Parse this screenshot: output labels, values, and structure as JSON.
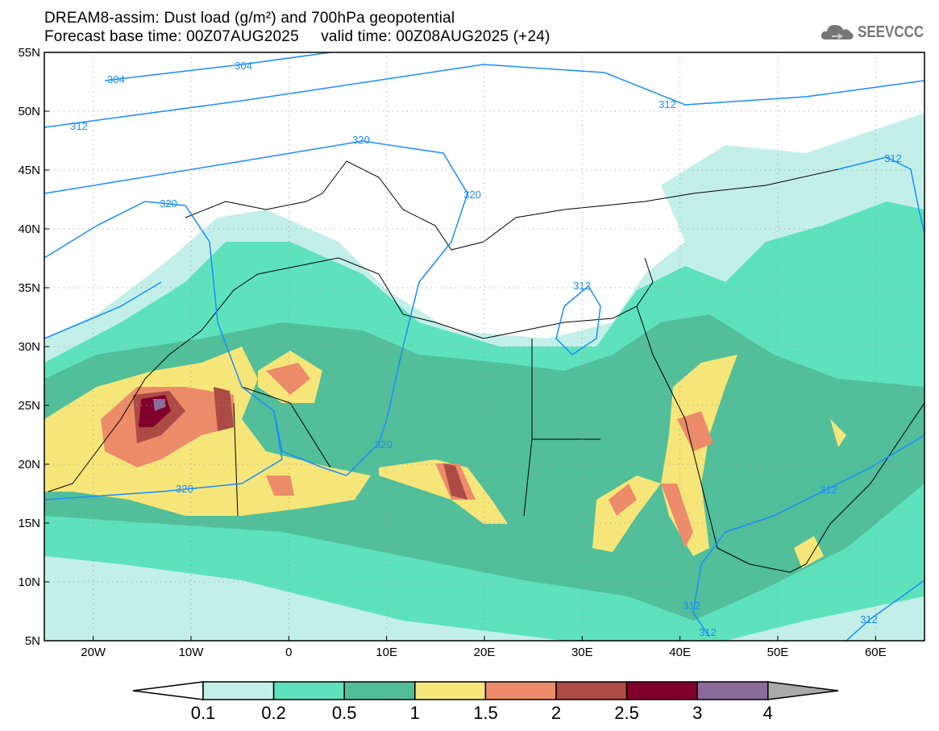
{
  "title": {
    "line1": "DREAM8-assim: Dust load (g/m²) and 700hPa geopotential",
    "line2": "Forecast base time: 00Z07AUG2025     valid time: 00Z08AUG2025 (+24)"
  },
  "logo": {
    "text": "SEEVCCC",
    "icon": "cloud-icon"
  },
  "axes": {
    "lat_labels": [
      "55N",
      "50N",
      "45N",
      "40N",
      "35N",
      "30N",
      "25N",
      "20N",
      "15N",
      "10N",
      "5N"
    ],
    "lon_labels": [
      "20W",
      "10W",
      "0",
      "10E",
      "20E",
      "30E",
      "40E",
      "50E",
      "60E"
    ]
  },
  "contours": {
    "labels": [
      "304",
      "304",
      "312",
      "312",
      "312",
      "312",
      "312",
      "312",
      "312",
      "312",
      "320",
      "320",
      "320",
      "320",
      "320"
    ]
  },
  "colorbar": {
    "labels": [
      "0.1",
      "0.2",
      "0.5",
      "1",
      "1.5",
      "2",
      "2.5",
      "3",
      "4"
    ],
    "colors": [
      "#c2f0e8",
      "#5ee2bc",
      "#52be9a",
      "#f6e67a",
      "#ec8c6a",
      "#ab4b44",
      "#82002c",
      "#8c6a9a",
      "#aaaaaa"
    ]
  }
}
